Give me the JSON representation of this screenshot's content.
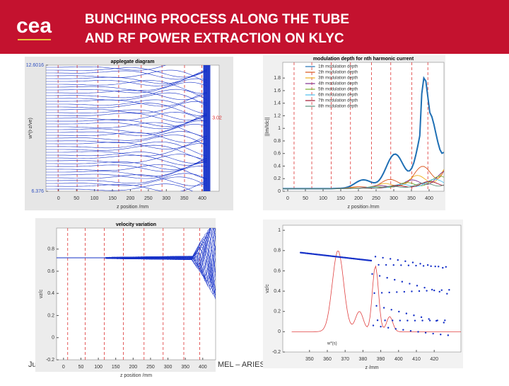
{
  "header": {
    "title_lines": [
      "BUNCHING PROCESS ALONG THE TUBE",
      "AND RF POWER EXTRACTION ON KLYC"
    ],
    "logo": "cea"
  },
  "footer": {
    "left": "Ju",
    "center": "MEL – ARIES"
  },
  "panels": [
    {
      "title": "applegate diagram",
      "xlabel": "z position /mm",
      "ylabel": "w*(t-z/ve)",
      "side_label": "3.02",
      "xlim": [
        -35,
        447
      ],
      "ylim": [
        6.376,
        12.6016
      ],
      "xticks": [
        0,
        50,
        100,
        150,
        200,
        250,
        300,
        350,
        400
      ],
      "yticks": [
        6.376,
        12.6016
      ]
    },
    {
      "title": "modulation depth for nth harmonic current",
      "xlabel": "z position /mm",
      "ylabel": "||Im/Idc||",
      "xlim": [
        -14,
        442
      ],
      "ylim": [
        0,
        2.05
      ],
      "xticks": [
        0,
        50,
        100,
        150,
        200,
        250,
        300,
        350,
        400
      ],
      "yticks": [
        0,
        0.2,
        0.4,
        0.6,
        0.8,
        1,
        1.2,
        1.4,
        1.6,
        1.8
      ],
      "legend": [
        {
          "name": "1th modulation depth",
          "color": "#1f6fb4"
        },
        {
          "name": "2th modulation depth",
          "color": "#d95319"
        },
        {
          "name": "3th modulation depth",
          "color": "#edb120"
        },
        {
          "name": "4th modulation depth",
          "color": "#7e2f8e"
        },
        {
          "name": "5th modulation depth",
          "color": "#77ac30"
        },
        {
          "name": "6th modulation depth",
          "color": "#4dbeee"
        },
        {
          "name": "7th modulation depth",
          "color": "#a2142f"
        },
        {
          "name": "8th modulation depth",
          "color": "#5a8f7b"
        }
      ]
    },
    {
      "title": "velocity variation",
      "xlabel": "z position /mm",
      "ylabel": "vz/c",
      "xlim": [
        -20,
        437
      ],
      "ylim": [
        -0.2,
        0.99
      ],
      "xticks": [
        0,
        50,
        100,
        150,
        200,
        250,
        300,
        350,
        400
      ],
      "yticks": [
        -0.2,
        0,
        0.2,
        0.4,
        0.6,
        0.8
      ]
    },
    {
      "xlabel": "z /mm",
      "ylabel": "vz/c",
      "legend_text": "w*(s)",
      "xlim": [
        335,
        435
      ],
      "ylim": [
        -0.2,
        1.05
      ],
      "xticks": [
        350,
        360,
        370,
        380,
        390,
        400,
        410,
        420
      ],
      "yticks": [
        -0.2,
        0,
        0.2,
        0.4,
        0.6,
        0.8,
        1
      ]
    }
  ]
}
